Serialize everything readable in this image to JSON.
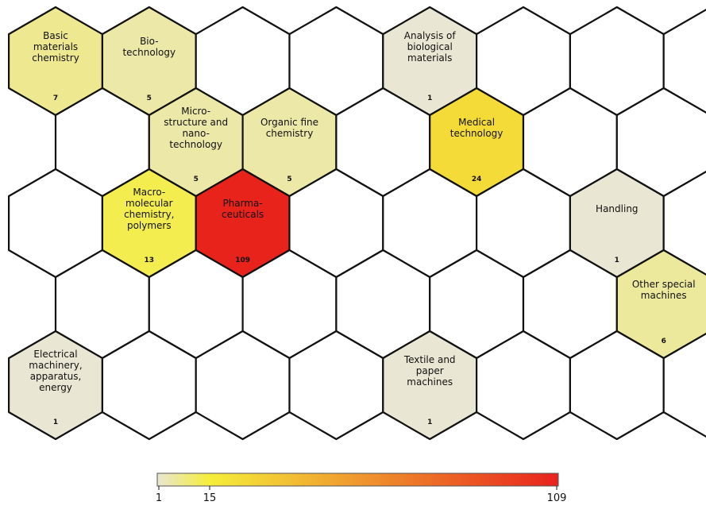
{
  "chart_data": {
    "type": "heatmap",
    "layout": "hexagonal-grid",
    "title": "",
    "rows": 5,
    "columns": 8,
    "colors": {
      "empty": "#ffffff",
      "low": "#e9e6d3",
      "mid": "#f5ee3a",
      "high": "#e8231c",
      "stroke": "#111111"
    },
    "color_scale": {
      "min": 1,
      "mid": 15,
      "max": 109,
      "ticks": [
        "1",
        "15",
        "109"
      ]
    },
    "cells": [
      {
        "row": 0,
        "col": 0,
        "label": [
          "Basic",
          "materials",
          "chemistry"
        ],
        "value": 7
      },
      {
        "row": 0,
        "col": 1,
        "label": [
          "Bio-",
          "technology"
        ],
        "value": 5
      },
      {
        "row": 0,
        "col": 2,
        "label": [],
        "value": null
      },
      {
        "row": 0,
        "col": 3,
        "label": [],
        "value": null
      },
      {
        "row": 0,
        "col": 4,
        "label": [
          "Analysis of",
          "biological",
          "materials"
        ],
        "value": 1
      },
      {
        "row": 0,
        "col": 5,
        "label": [],
        "value": null
      },
      {
        "row": 0,
        "col": 6,
        "label": [],
        "value": null
      },
      {
        "row": 0,
        "col": 7,
        "label": [],
        "value": null
      },
      {
        "row": 1,
        "col": 0,
        "label": [],
        "value": null
      },
      {
        "row": 1,
        "col": 1,
        "label": [
          "Micro-",
          "structure and",
          "nano-",
          "technology"
        ],
        "value": 5
      },
      {
        "row": 1,
        "col": 2,
        "label": [
          "Organic fine",
          "chemistry"
        ],
        "value": 5
      },
      {
        "row": 1,
        "col": 3,
        "label": [],
        "value": null
      },
      {
        "row": 1,
        "col": 4,
        "label": [
          "Medical",
          "technology"
        ],
        "value": 24
      },
      {
        "row": 1,
        "col": 5,
        "label": [],
        "value": null
      },
      {
        "row": 1,
        "col": 6,
        "label": [],
        "value": null
      },
      {
        "row": 1,
        "col": 7,
        "label": [],
        "value": null
      },
      {
        "row": 2,
        "col": 0,
        "label": [],
        "value": null
      },
      {
        "row": 2,
        "col": 1,
        "label": [
          "Macro-",
          "molecular",
          "chemistry,",
          "polymers"
        ],
        "value": 13
      },
      {
        "row": 2,
        "col": 2,
        "label": [
          "Pharma-",
          "ceuticals"
        ],
        "value": 109
      },
      {
        "row": 2,
        "col": 3,
        "label": [],
        "value": null
      },
      {
        "row": 2,
        "col": 4,
        "label": [],
        "value": null
      },
      {
        "row": 2,
        "col": 5,
        "label": [],
        "value": null
      },
      {
        "row": 2,
        "col": 6,
        "label": [
          "Handling"
        ],
        "value": 1
      },
      {
        "row": 2,
        "col": 7,
        "label": [],
        "value": null
      },
      {
        "row": 3,
        "col": 0,
        "label": [],
        "value": null
      },
      {
        "row": 3,
        "col": 1,
        "label": [],
        "value": null
      },
      {
        "row": 3,
        "col": 2,
        "label": [],
        "value": null
      },
      {
        "row": 3,
        "col": 3,
        "label": [],
        "value": null
      },
      {
        "row": 3,
        "col": 4,
        "label": [],
        "value": null
      },
      {
        "row": 3,
        "col": 5,
        "label": [],
        "value": null
      },
      {
        "row": 3,
        "col": 6,
        "label": [
          "Other special",
          "machines"
        ],
        "value": 6
      },
      {
        "row": 3,
        "col": 7,
        "label": [],
        "value": null
      },
      {
        "row": 4,
        "col": 0,
        "label": [
          "Electrical",
          "machinery,",
          "apparatus,",
          "energy"
        ],
        "value": 1
      },
      {
        "row": 4,
        "col": 1,
        "label": [],
        "value": null
      },
      {
        "row": 4,
        "col": 2,
        "label": [],
        "value": null
      },
      {
        "row": 4,
        "col": 3,
        "label": [],
        "value": null
      },
      {
        "row": 4,
        "col": 4,
        "label": [
          "Textile and",
          "paper",
          "machines"
        ],
        "value": 1
      },
      {
        "row": 4,
        "col": 5,
        "label": [],
        "value": null
      },
      {
        "row": 4,
        "col": 6,
        "label": [],
        "value": null
      },
      {
        "row": 4,
        "col": 7,
        "label": [],
        "value": null
      }
    ]
  }
}
